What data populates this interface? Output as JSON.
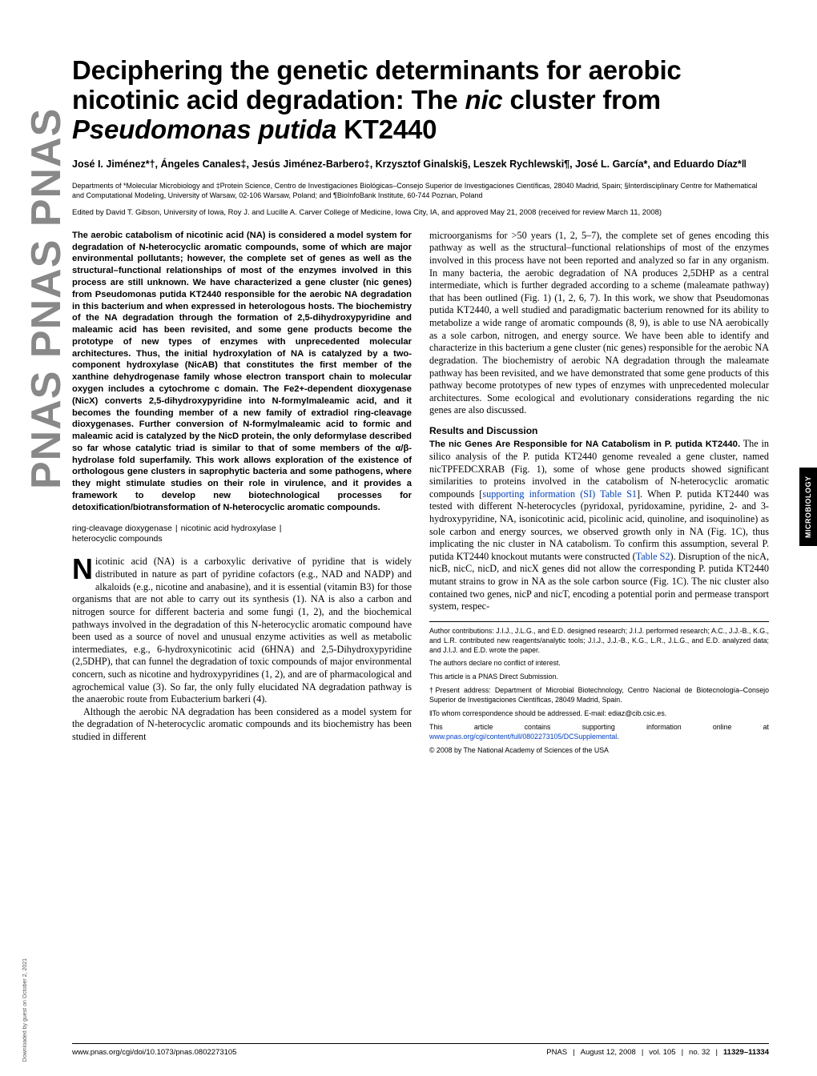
{
  "logo": "PNAS  PNAS  PNAS",
  "side_tab": "MICROBIOLOGY",
  "download_note": "Downloaded by guest on October 2, 2021",
  "title_line1": "Deciphering the genetic determinants for aerobic",
  "title_line2_a": "nicotinic acid degradation: The ",
  "title_line2_b": "nic",
  "title_line2_c": " cluster from",
  "title_line3_a": "Pseudomonas putida",
  "title_line3_b": " KT2440",
  "authors": "José I. Jiménez*†, Ángeles Canales‡, Jesús Jiménez-Barbero‡, Krzysztof Ginalski§, Leszek Rychlewski¶, José L. García*, and Eduardo Díaz*‖",
  "affil": "Departments of *Molecular Microbiology and ‡Protein Science, Centro de Investigaciones Biológicas–Consejo Superior de Investigaciones Científicas, 28040 Madrid, Spain; §Interdisciplinary Centre for Mathematical and Computational Modeling, University of Warsaw, 02-106 Warsaw, Poland; and ¶BioInfoBank Institute, 60-744 Poznan, Poland",
  "edited": "Edited by David T. Gibson, University of Iowa, Roy J. and Lucille A. Carver College of Medicine, Iowa City, IA, and approved May 21, 2008 (received for review March 11, 2008)",
  "abstract": "The aerobic catabolism of nicotinic acid (NA) is considered a model system for degradation of N-heterocyclic aromatic compounds, some of which are major environmental pollutants; however, the complete set of genes as well as the structural–functional relationships of most of the enzymes involved in this process are still unknown. We have characterized a gene cluster (nic genes) from Pseudomonas putida KT2440 responsible for the aerobic NA degradation in this bacterium and when expressed in heterologous hosts. The biochemistry of the NA degradation through the formation of 2,5-dihydroxypyridine and maleamic acid has been revisited, and some gene products become the prototype of new types of enzymes with unprecedented molecular architectures. Thus, the initial hydroxylation of NA is catalyzed by a two-component hydroxylase (NicAB) that constitutes the first member of the xanthine dehydrogenase family whose electron transport chain to molecular oxygen includes a cytochrome c domain. The Fe2+-dependent dioxygenase (NicX) converts 2,5-dihydroxypyridine into N-formylmaleamic acid, and it becomes the founding member of a new family of extradiol ring-cleavage dioxygenases. Further conversion of N-formylmaleamic acid to formic and maleamic acid is catalyzed by the NicD protein, the only deformylase described so far whose catalytic triad is similar to that of some members of the α/β-hydrolase fold superfamily. This work allows exploration of the existence of orthologous gene clusters in saprophytic bacteria and some pathogens, where they might stimulate studies on their role in virulence, and it provides a framework to develop new biotechnological processes for detoxification/biotransformation of N-heterocyclic aromatic compounds.",
  "kw1": "ring-cleavage dioxygenase",
  "kw2": "nicotinic acid hydroxylase",
  "kw3": "heterocyclic compounds",
  "intro_first": "icotinic acid (NA) is a carboxylic derivative of pyridine that is widely distributed in nature as part of pyridine cofactors (e.g., NAD and NADP) and alkaloids (e.g., nicotine and anabasine), and it is essential (vitamin B3) for those organisms that are not able to carry out its synthesis (1). NA is also a carbon and nitrogen source for different bacteria and some fungi (1, 2), and the biochemical pathways involved in the degradation of this N-heterocyclic aromatic compound have been used as a source of novel and unusual enzyme activities as well as metabolic intermediates, e.g., 6-hydroxynicotinic acid (6HNA) and 2,5-Dihydroxypyridine (2,5DHP), that can funnel the degradation of toxic compounds of major environmental concern, such as nicotine and hydroxypyridines (1, 2), and are of pharmacological and agrochemical value (3). So far, the only fully elucidated NA degradation pathway is the anaerobic route from Eubacterium barkeri (4).",
  "intro_second": "Although the aerobic NA degradation has been considered as a model system for the degradation of N-heterocyclic aromatic compounds and its biochemistry has been studied in different",
  "col2_p1": "microorganisms for >50 years (1, 2, 5–7), the complete set of genes encoding this pathway as well as the structural–functional relationships of most of the enzymes involved in this process have not been reported and analyzed so far in any organism. In many bacteria, the aerobic degradation of NA produces 2,5DHP as a central intermediate, which is further degraded according to a scheme (maleamate pathway) that has been outlined (Fig. 1) (1, 2, 6, 7). In this work, we show that Pseudomonas putida KT2440, a well studied and paradigmatic bacterium renowned for its ability to metabolize a wide range of aromatic compounds (8, 9), is able to use NA aerobically as a sole carbon, nitrogen, and energy source. We have been able to identify and characterize in this bacterium a gene cluster (nic genes) responsible for the aerobic NA degradation. The biochemistry of aerobic NA degradation through the maleamate pathway has been revisited, and we have demonstrated that some gene products of this pathway become prototypes of new types of enzymes with unprecedented molecular architectures. Some ecological and evolutionary considerations regarding the nic genes are also discussed.",
  "results_head": "Results and Discussion",
  "results_runin": "The nic Genes Are Responsible for NA Catabolism in P. putida KT2440.",
  "results_p1a": "The in silico analysis of the P. putida KT2440 genome revealed a gene cluster, named nicTPFEDCXRAB (Fig. 1), some of whose gene products showed significant similarities to proteins involved in the catabolism of N-heterocyclic aromatic compounds [",
  "results_link1": "supporting information (SI) Table S1",
  "results_p1b": "]. When P. putida KT2440 was tested with different N-heterocycles (pyridoxal, pyridoxamine, pyridine, 2- and 3-hydroxypyridine, NA, isonicotinic acid, picolinic acid, quinoline, and isoquinoline) as sole carbon and energy sources, we observed growth only in NA (Fig. 1C), thus implicating the nic cluster in NA catabolism. To confirm this assumption, several P. putida KT2440 knockout mutants were constructed (",
  "results_link2": "Table S2",
  "results_p1c": "). Disruption of the nicA, nicB, nicC, nicD, and nicX genes did not allow the corresponding P. putida KT2440 mutant strains to grow in NA as the sole carbon source (Fig. 1C). The nic cluster also contained two genes, nicP and nicT, encoding a potential porin and permease transport system, respec-",
  "fn_contrib": "Author contributions: J.I.J., J.L.G., and E.D. designed research; J.I.J. performed research; A.C., J.J.-B., K.G., and L.R. contributed new reagents/analytic tools; J.I.J., J.J.-B., K.G., L.R., J.L.G., and E.D. analyzed data; and J.I.J. and E.D. wrote the paper.",
  "fn_conflict": "The authors declare no conflict of interest.",
  "fn_direct": "This article is a PNAS Direct Submission.",
  "fn_present": "†Present address: Department of Microbial Biotechnology, Centro Nacional de Biotecnología–Consejo Superior de Investigaciones Científicas, 28049 Madrid, Spain.",
  "fn_corr": "‖To whom correspondence should be addressed. E-mail: ediaz@cib.csic.es.",
  "fn_si_a": "This article contains supporting information online at ",
  "fn_si_link": "www.pnas.org/cgi/content/full/0802273105/DCSupplemental",
  "fn_si_b": ".",
  "fn_copyright": "© 2008 by The National Academy of Sciences of the USA",
  "footer_doi": "www.pnas.org/cgi/doi/10.1073/pnas.0802273105",
  "footer_journal": "PNAS",
  "footer_date": "August 12, 2008",
  "footer_vol": "vol. 105",
  "footer_no": "no. 32",
  "footer_pages": "11329–11334"
}
